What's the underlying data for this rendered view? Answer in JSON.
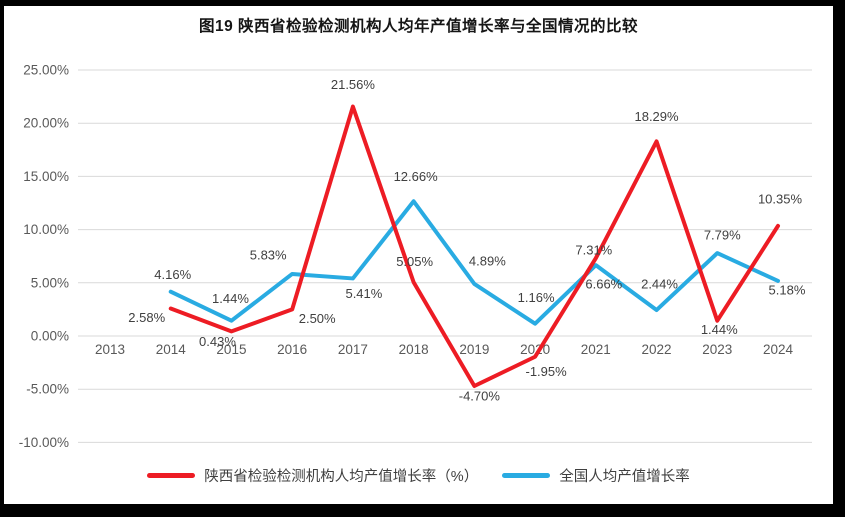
{
  "chart_data": {
    "type": "line",
    "title": "图19 陕西省检验检测机构人均年产值增长率与全国情况的比较",
    "x_categories": [
      "2013",
      "2014",
      "2015",
      "2016",
      "2017",
      "2018",
      "2019",
      "2020",
      "2021",
      "2022",
      "2023",
      "2024"
    ],
    "y_ticks": [
      {
        "value": 25,
        "label": "25.00%"
      },
      {
        "value": 20,
        "label": "20.00%"
      },
      {
        "value": 15,
        "label": "15.00%"
      },
      {
        "value": 10,
        "label": "10.00%"
      },
      {
        "value": 5,
        "label": "5.00%"
      },
      {
        "value": 0,
        "label": "0.00%"
      },
      {
        "value": -5,
        "label": "-5.00%"
      },
      {
        "value": -10,
        "label": "-10.00%"
      }
    ],
    "ylim": [
      -10,
      25
    ],
    "grid": true,
    "legend_position": "bottom",
    "grid_color": "#D9D9D9",
    "axis_text_color": "#595959",
    "label_text_color": "#404040",
    "series": [
      {
        "name": "陕西省检验检测机构人均产值增长率（%）",
        "color": "#ED1C24",
        "values": [
          null,
          2.58,
          0.43,
          2.5,
          21.56,
          5.05,
          -4.7,
          -1.95,
          7.31,
          18.29,
          1.44,
          10.35
        ],
        "point_labels": [
          null,
          "2.58%",
          "0.43%",
          "2.50%",
          "21.56%",
          "5.05%",
          "-4.70%",
          "-1.95%",
          "7.31%",
          "18.29%",
          "1.44%",
          "10.35%"
        ],
        "label_offsets": [
          null,
          [
            -24,
            9
          ],
          [
            -14,
            10
          ],
          [
            25,
            9
          ],
          [
            0,
            -22
          ],
          [
            1,
            -21
          ],
          [
            5,
            10
          ],
          [
            11,
            15
          ],
          [
            -2,
            -8
          ],
          [
            0,
            -25
          ],
          [
            2,
            9
          ],
          [
            2,
            -27
          ]
        ]
      },
      {
        "name": "全国人均产值增长率",
        "color": "#29ABE2",
        "values": [
          null,
          4.16,
          1.44,
          5.83,
          5.41,
          12.66,
          4.89,
          1.16,
          6.66,
          2.44,
          7.79,
          5.18
        ],
        "point_labels": [
          null,
          "4.16%",
          "1.44%",
          "5.83%",
          "5.41%",
          "12.66%",
          "4.89%",
          "1.16%",
          "6.66%",
          "2.44%",
          "7.79%",
          "5.18%"
        ],
        "label_offsets": [
          null,
          [
            2,
            -17
          ],
          [
            -1,
            -22
          ],
          [
            -24,
            -19
          ],
          [
            11,
            15
          ],
          [
            2,
            -25
          ],
          [
            13,
            -23
          ],
          [
            1,
            -26
          ],
          [
            8,
            19
          ],
          [
            3,
            -26
          ],
          [
            5,
            -18
          ],
          [
            9,
            9
          ]
        ]
      }
    ]
  }
}
